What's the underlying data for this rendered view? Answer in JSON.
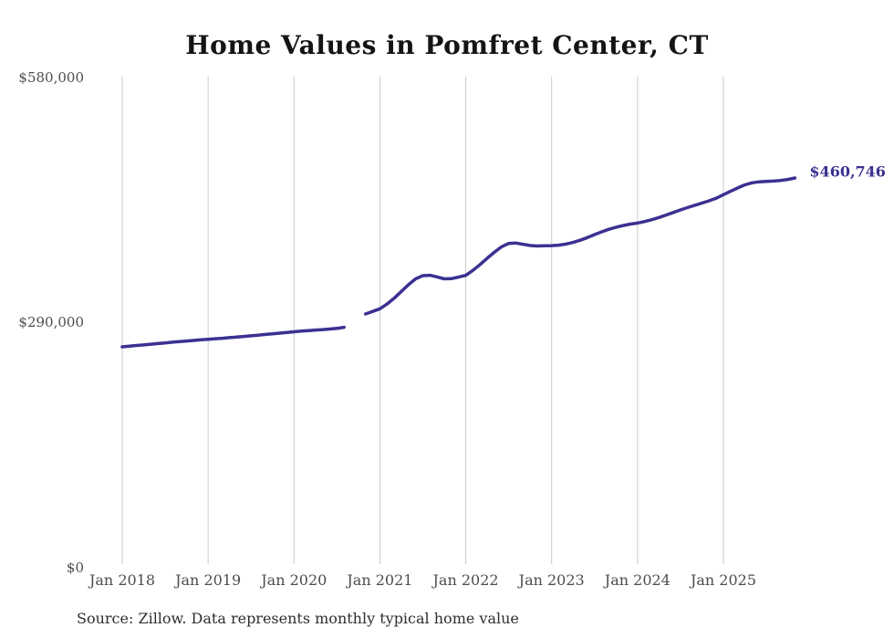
{
  "title": "Home Values in Pomfret Center, CT",
  "source_note": "Source: Zillow. Data represents monthly typical home value",
  "colors": {
    "line": "#3b3191",
    "grid": "#c9c9c9",
    "title_text": "#141414",
    "axis_text": "#4d4d4d",
    "end_label_text": "#3b3191",
    "source_text": "#2e2e2e",
    "background": "#ffffff"
  },
  "chart_data": {
    "type": "line",
    "title": "Home Values in Pomfret Center, CT",
    "xlabel": "",
    "ylabel": "",
    "unit": "USD",
    "frequency": "monthly",
    "months_from": "2018-01",
    "months_to": "2025-11",
    "gap_months": [
      "2020-09",
      "2020-10"
    ],
    "ylim": [
      0,
      580000
    ],
    "grid": "vertical-only",
    "legend_position": "none",
    "end_label": "$460,746",
    "end_value": 460746,
    "y_ticks": [
      {
        "label": "$0",
        "value": 0
      },
      {
        "label": "$290,000",
        "value": 290000
      },
      {
        "label": "$580,000",
        "value": 580000
      }
    ],
    "x_ticks": [
      {
        "label": "Jan 2018",
        "index": 0
      },
      {
        "label": "Jan 2019",
        "index": 12
      },
      {
        "label": "Jan 2020",
        "index": 24
      },
      {
        "label": "Jan 2021",
        "index": 36
      },
      {
        "label": "Jan 2022",
        "index": 48
      },
      {
        "label": "Jan 2023",
        "index": 60
      },
      {
        "label": "Jan 2024",
        "index": 72
      },
      {
        "label": "Jan 2025",
        "index": 84
      }
    ],
    "series": [
      {
        "name": "Monthly typical home value",
        "values": [
          260200,
          261000,
          261800,
          262500,
          263300,
          264100,
          264900,
          265700,
          266400,
          267100,
          267800,
          268500,
          269200,
          269800,
          270400,
          271100,
          271800,
          272500,
          273300,
          274100,
          274900,
          275700,
          276500,
          277300,
          278100,
          278800,
          279500,
          280100,
          280700,
          281300,
          282100,
          283400,
          null,
          null,
          299200,
          302300,
          305400,
          311000,
          318000,
          326000,
          334000,
          341000,
          344800,
          345200,
          343200,
          341000,
          341200,
          343000,
          345100,
          351000,
          358000,
          365500,
          372500,
          379000,
          383000,
          383500,
          382000,
          380500,
          380000,
          380200,
          380400,
          381000,
          382300,
          384200,
          386800,
          390000,
          393500,
          396800,
          399800,
          402200,
          404300,
          406000,
          407200,
          409000,
          411200,
          413800,
          416700,
          419800,
          422800,
          425600,
          428300,
          430900,
          433600,
          436700,
          440900,
          444900,
          448900,
          452600,
          455000,
          456200,
          456700,
          457100,
          457800,
          459000,
          460746
        ]
      }
    ]
  }
}
